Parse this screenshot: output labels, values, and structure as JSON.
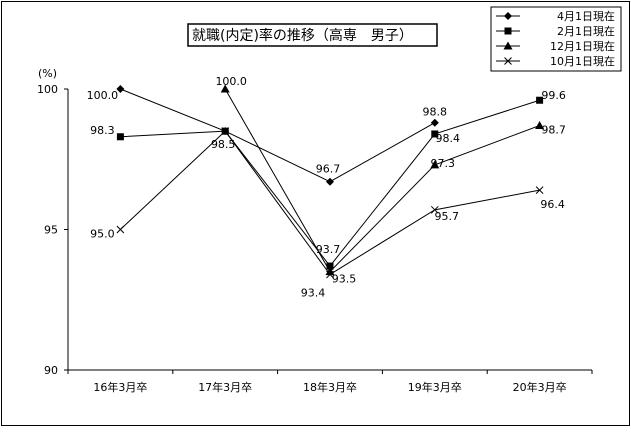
{
  "chart_data": {
    "type": "line",
    "title": "就職(内定)率の推移（高専　男子）",
    "ylabel": "(%)",
    "ylim": [
      90,
      100
    ],
    "yticks": [
      100,
      95,
      90
    ],
    "categories": [
      "16年3月卒",
      "17年3月卒",
      "18年3月卒",
      "19年3月卒",
      "20年3月卒"
    ],
    "grid": false,
    "legend_position": "top-right",
    "series": [
      {
        "name": "4月1日現在",
        "marker": "diamond",
        "values": [
          100.0,
          98.5,
          96.7,
          98.8,
          null
        ],
        "labels": [
          "100.0",
          "",
          "96.7",
          "98.8",
          ""
        ]
      },
      {
        "name": "2月1日現在",
        "marker": "square",
        "values": [
          98.3,
          98.5,
          93.7,
          98.4,
          99.6
        ],
        "labels": [
          "98.3",
          "98.5",
          "93.7",
          "98.4",
          "99.6"
        ]
      },
      {
        "name": "12月1日現在",
        "marker": "triangle",
        "values": [
          null,
          100.0,
          93.5,
          97.3,
          98.7
        ],
        "labels": [
          "",
          "100.0",
          "93.5",
          "97.3",
          "98.7"
        ]
      },
      {
        "name": "10月1日現在",
        "marker": "x",
        "values": [
          95.0,
          98.5,
          93.4,
          95.7,
          96.4
        ],
        "labels": [
          "95.0",
          "",
          "93.4",
          "95.7",
          "96.4"
        ]
      }
    ]
  }
}
